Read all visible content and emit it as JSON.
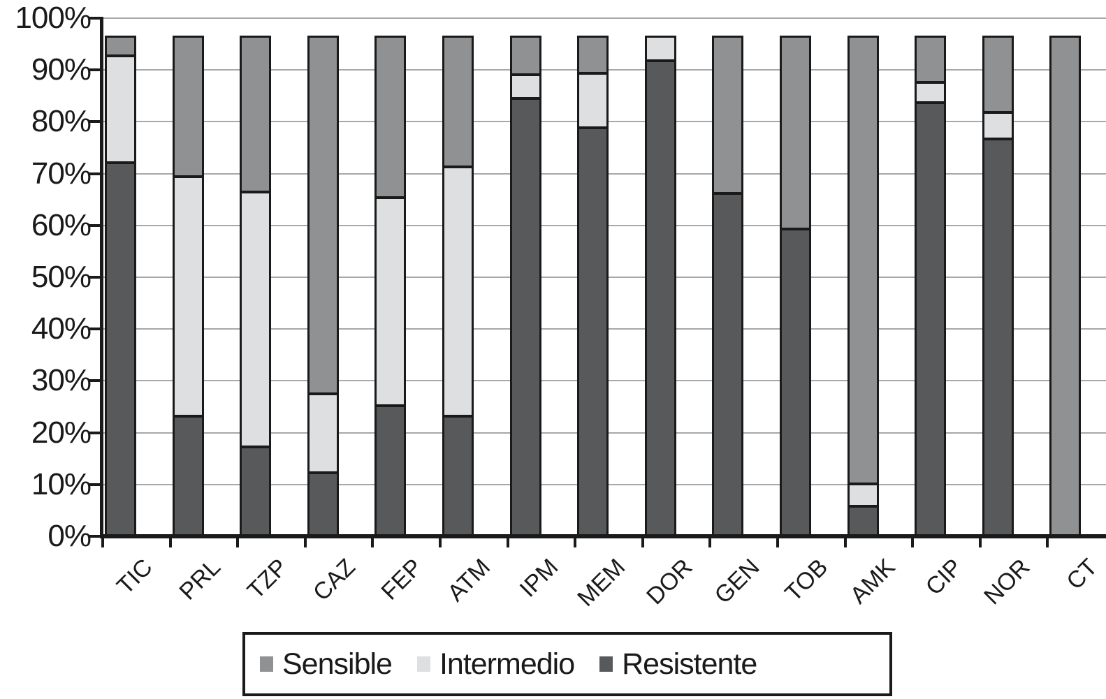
{
  "chart_data": {
    "type": "bar",
    "variant": "stacked-100-percent",
    "title": "",
    "xlabel": "",
    "ylabel": "",
    "categories": [
      "TIC",
      "PRL",
      "TZP",
      "CAZ",
      "FEP",
      "ATM",
      "IPM",
      "MEM",
      "DOR",
      "GEN",
      "TOB",
      "AMK",
      "CIP",
      "NOR",
      "CT"
    ],
    "series": [
      {
        "name": "Sensible",
        "color": "#8f9193",
        "values": [
          3.3,
          26.8,
          29.8,
          69.0,
          30.9,
          24.8,
          6.9,
          6.6,
          0,
          30.0,
          37.0,
          86.6,
          8.4,
          14.2,
          96.6
        ]
      },
      {
        "name": "Intermedio",
        "color": "#dedfe1",
        "values": [
          20.7,
          46.6,
          49.5,
          15.4,
          40.4,
          48.6,
          4.6,
          10.7,
          4.2,
          0,
          0,
          4.3,
          4.0,
          5.2,
          0
        ]
      },
      {
        "name": "Resistente",
        "color": "#58595b",
        "values": [
          72.6,
          23.2,
          17.3,
          12.2,
          25.3,
          23.2,
          85.1,
          79.3,
          92.4,
          66.6,
          59.6,
          5.7,
          84.2,
          77.2,
          0
        ]
      }
    ],
    "stack_order_bottom_to_top": [
      "Resistente",
      "Intermedio",
      "Sensible"
    ],
    "bar_total_drawn_percent": 96.6,
    "y_axis": {
      "min": 0,
      "max": 100,
      "tick_step": 10,
      "tick_labels": [
        "0%",
        "10%",
        "20%",
        "30%",
        "40%",
        "50%",
        "60%",
        "70%",
        "80%",
        "90%",
        "100%"
      ],
      "grid": true
    },
    "legend": {
      "position": "bottom",
      "boxed": true,
      "entries": [
        "Sensible",
        "Intermedio",
        "Resistente"
      ]
    },
    "colors": {
      "axis": "#1a1a1a",
      "grid": "#a8a8a8",
      "background": "#ffffff"
    }
  }
}
